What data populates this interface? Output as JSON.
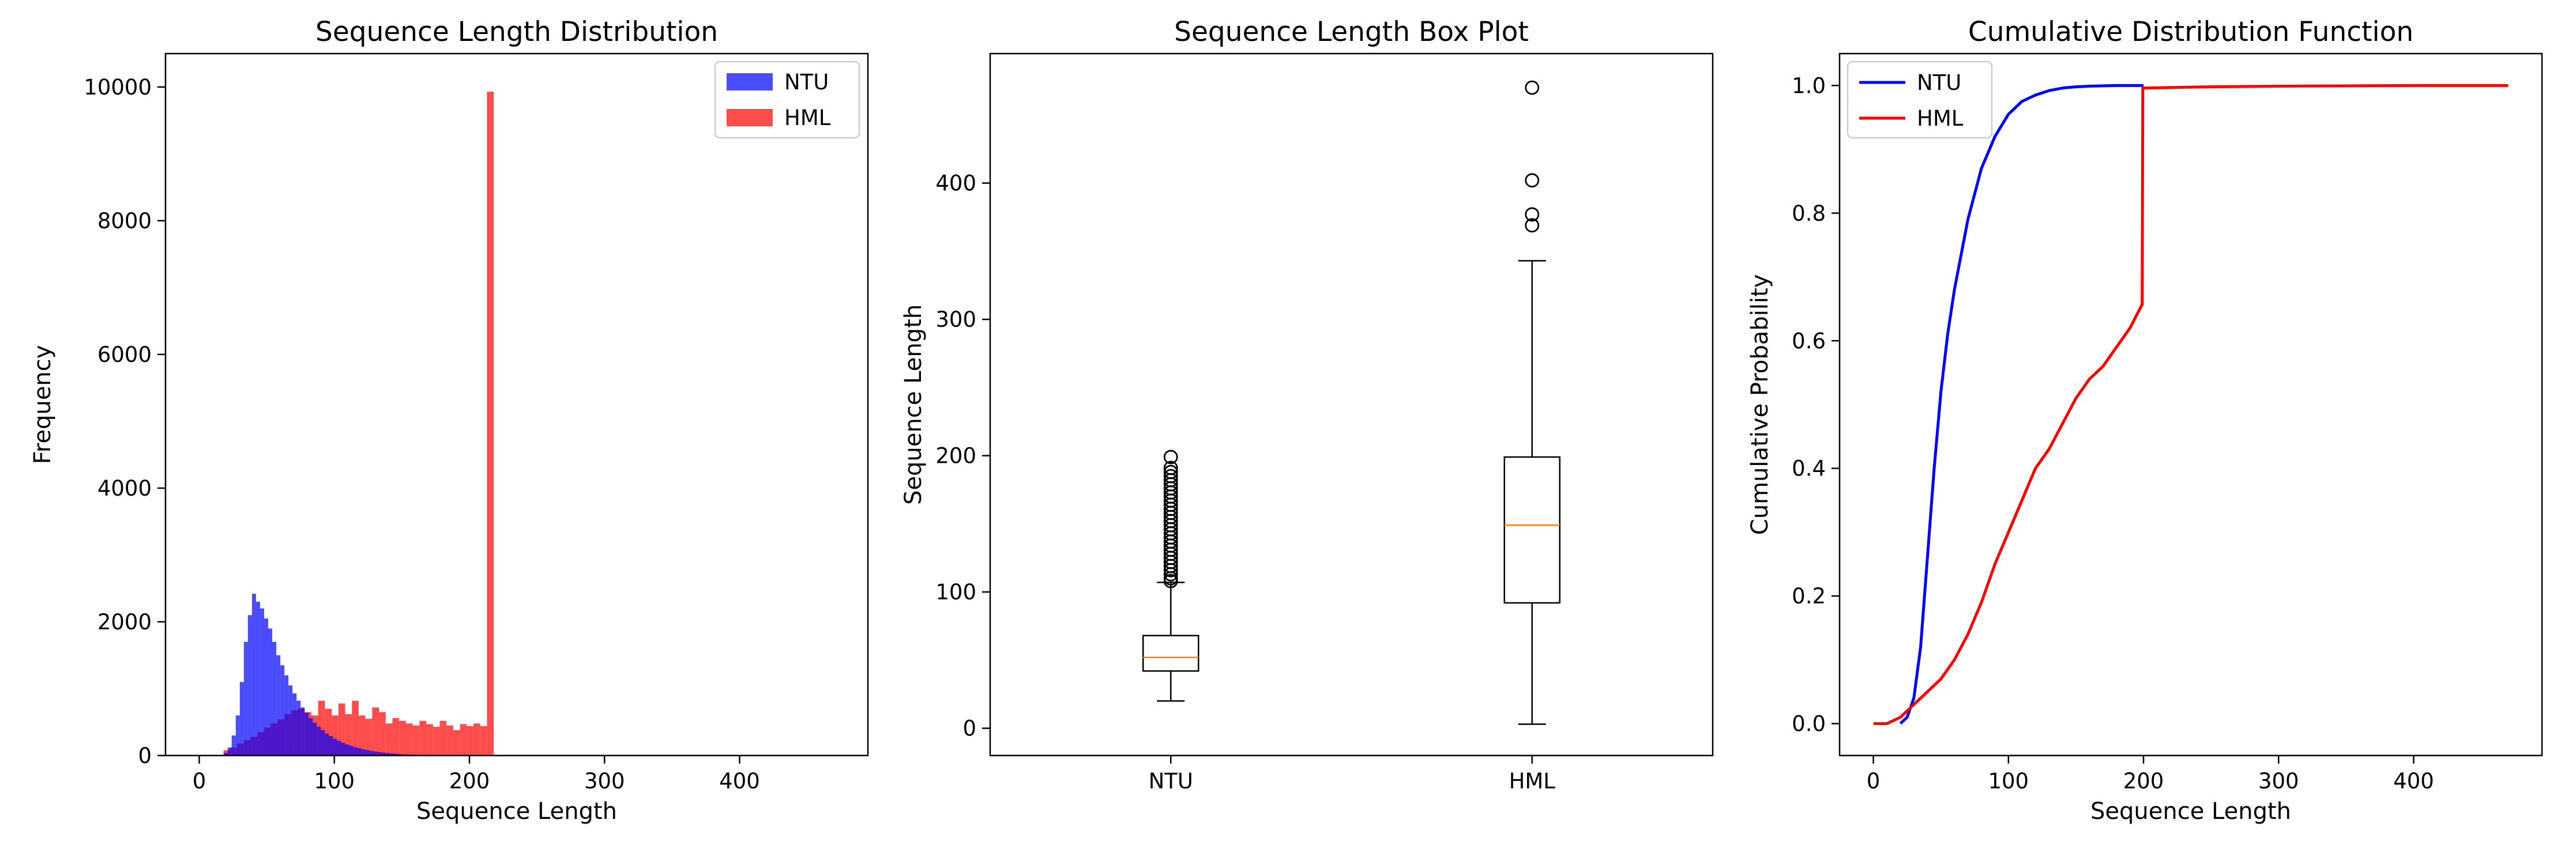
{
  "chart_data": [
    {
      "type": "histogram",
      "title": "Sequence Length Distribution",
      "xlabel": "Sequence Length",
      "ylabel": "Frequency",
      "xlim": [
        -25,
        495
      ],
      "ylim": [
        0,
        10500
      ],
      "xticks": [
        0,
        100,
        200,
        300,
        400
      ],
      "yticks": [
        0,
        2000,
        4000,
        6000,
        8000,
        10000
      ],
      "legend": "top-right",
      "alpha": 0.7,
      "series": [
        {
          "name": "NTU",
          "color": "#0000ff",
          "bin_start": 15,
          "bin_width": 3,
          "values": [
            10,
            40,
            120,
            300,
            600,
            1100,
            1700,
            2100,
            2420,
            2300,
            2200,
            2050,
            1900,
            1700,
            1500,
            1350,
            1200,
            1050,
            930,
            820,
            720,
            640,
            560,
            490,
            430,
            380,
            330,
            290,
            250,
            220,
            190,
            165,
            145,
            125,
            110,
            95,
            82,
            70,
            60,
            52,
            45,
            38,
            32,
            27,
            22,
            18,
            15,
            12,
            10,
            8,
            6,
            5,
            4,
            3,
            2,
            2,
            1,
            1,
            1,
            1,
            1,
            1
          ]
        },
        {
          "name": "HML",
          "color": "#ff0000",
          "bin_start": 3,
          "bin_width": 5,
          "values": [
            0,
            0,
            0,
            80,
            120,
            180,
            230,
            280,
            350,
            420,
            480,
            540,
            620,
            680,
            700,
            650,
            600,
            820,
            700,
            600,
            780,
            620,
            820,
            600,
            550,
            720,
            650,
            480,
            560,
            520,
            480,
            450,
            520,
            470,
            430,
            520,
            450,
            380,
            470,
            440,
            480,
            440,
            9930,
            0,
            0,
            0,
            0,
            0,
            0,
            0,
            0,
            0,
            0,
            0,
            0,
            0,
            0,
            0,
            0,
            0,
            0,
            0,
            0,
            0,
            0,
            0,
            0,
            0,
            0,
            0,
            0,
            0,
            0,
            0,
            0,
            0,
            0,
            0,
            0,
            0,
            0,
            0,
            0,
            0,
            0,
            0,
            0,
            0,
            0,
            0,
            0,
            1
          ]
        }
      ]
    },
    {
      "type": "box",
      "title": "Sequence Length Box Plot",
      "xlabel": "",
      "ylabel": "Sequence Length",
      "categories": [
        "NTU",
        "HML"
      ],
      "ylim": [
        -20,
        495
      ],
      "yticks": [
        0,
        100,
        200,
        300,
        400
      ],
      "boxes": [
        {
          "name": "NTU",
          "whisker_low": 20,
          "q1": 42,
          "median": 52,
          "q3": 68,
          "whisker_high": 107,
          "outliers": [
            108,
            110,
            113,
            116,
            119,
            122,
            125,
            128,
            131,
            134,
            137,
            140,
            143,
            146,
            149,
            152,
            155,
            158,
            161,
            164,
            167,
            170,
            173,
            176,
            179,
            182,
            185,
            188,
            191,
            199
          ]
        },
        {
          "name": "HML",
          "whisker_low": 3,
          "q1": 92,
          "median": 149,
          "q3": 199,
          "whisker_high": 343,
          "outliers": [
            369,
            377,
            402,
            470
          ]
        }
      ]
    },
    {
      "type": "line",
      "title": "Cumulative Distribution Function",
      "xlabel": "Sequence Length",
      "ylabel": "Cumulative Probability",
      "xlim": [
        -25,
        495
      ],
      "ylim": [
        -0.05,
        1.05
      ],
      "xticks": [
        0,
        100,
        200,
        300,
        400
      ],
      "yticks": [
        0.0,
        0.2,
        0.4,
        0.6,
        0.8,
        1.0
      ],
      "legend": "top-left",
      "series": [
        {
          "name": "NTU",
          "color": "#0000ff",
          "x": [
            20,
            25,
            30,
            35,
            40,
            45,
            50,
            55,
            60,
            70,
            80,
            90,
            100,
            110,
            120,
            130,
            140,
            150,
            160,
            180,
            200
          ],
          "y": [
            0.0,
            0.01,
            0.04,
            0.12,
            0.26,
            0.4,
            0.52,
            0.61,
            0.68,
            0.79,
            0.87,
            0.92,
            0.955,
            0.975,
            0.985,
            0.992,
            0.996,
            0.998,
            0.999,
            1.0,
            1.0
          ]
        },
        {
          "name": "HML",
          "color": "#ff0000",
          "x": [
            0,
            10,
            20,
            30,
            40,
            50,
            60,
            70,
            80,
            90,
            100,
            110,
            120,
            130,
            140,
            150,
            160,
            170,
            180,
            190,
            199,
            199.5,
            250,
            300,
            400,
            470
          ],
          "y": [
            0.0,
            0.0,
            0.01,
            0.03,
            0.05,
            0.07,
            0.1,
            0.14,
            0.19,
            0.25,
            0.3,
            0.35,
            0.4,
            0.43,
            0.47,
            0.51,
            0.54,
            0.56,
            0.59,
            0.62,
            0.657,
            0.996,
            0.998,
            0.999,
            1.0,
            1.0
          ]
        }
      ]
    }
  ]
}
